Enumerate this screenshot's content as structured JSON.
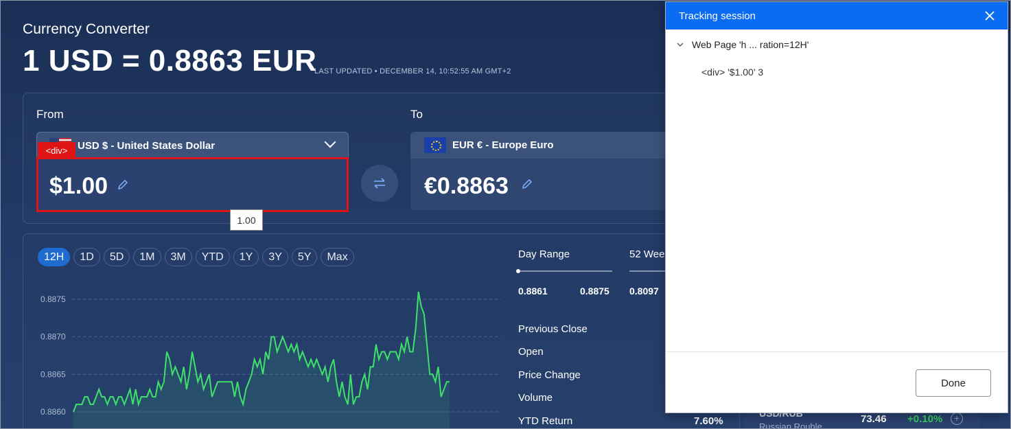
{
  "header": {
    "title": "Currency Converter",
    "rate": "1 USD = 0.8863 EUR",
    "last_updated": "LAST UPDATED • DECEMBER 14, 10:52:55 AM GMT+2"
  },
  "converter": {
    "from_label": "From",
    "to_label": "To",
    "from_currency": "USD $ - United States Dollar",
    "to_currency": "EUR € - Europe Euro",
    "from_amount": "$1.00",
    "to_amount": "€0.8863"
  },
  "overlay": {
    "highlight_tag": "<div>",
    "tooltip": "1.00"
  },
  "range_tabs": [
    "12H",
    "1D",
    "5D",
    "1M",
    "3M",
    "YTD",
    "1Y",
    "3Y",
    "5Y",
    "Max"
  ],
  "active_range": "12H",
  "chart_data": {
    "type": "line",
    "title": "",
    "xlabel": "",
    "ylabel": "",
    "ylim": [
      0.8858,
      0.8877
    ],
    "yticks": [
      "0.8875",
      "0.8870",
      "0.8865",
      "0.8860"
    ],
    "grid": true,
    "series_color": "#3ee26a",
    "values": [
      0.886,
      0.8861,
      0.8861,
      0.8861,
      0.8862,
      0.8862,
      0.8861,
      0.8861,
      0.8862,
      0.8863,
      0.8862,
      0.8862,
      0.8861,
      0.8862,
      0.8862,
      0.8861,
      0.8862,
      0.8862,
      0.8861,
      0.8862,
      0.8863,
      0.8861,
      0.8863,
      0.8861,
      0.8862,
      0.8862,
      0.8862,
      0.8863,
      0.8862,
      0.8862,
      0.8864,
      0.8863,
      0.8864,
      0.8868,
      0.8867,
      0.8865,
      0.8866,
      0.8865,
      0.8864,
      0.8866,
      0.8863,
      0.8865,
      0.8868,
      0.8866,
      0.8864,
      0.8865,
      0.8863,
      0.8864,
      0.8865,
      0.8862,
      0.8863,
      0.8864,
      0.8864,
      0.8864,
      0.8864,
      0.8864,
      0.8864,
      0.8862,
      0.8864,
      0.8862,
      0.8861,
      0.8863,
      0.8864,
      0.8865,
      0.8867,
      0.8866,
      0.8867,
      0.8865,
      0.8868,
      0.8867,
      0.887,
      0.887,
      0.8868,
      0.8869,
      0.887,
      0.8869,
      0.8868,
      0.8869,
      0.8868,
      0.8869,
      0.8867,
      0.8868,
      0.8867,
      0.8866,
      0.8867,
      0.8866,
      0.8867,
      0.8866,
      0.8865,
      0.8866,
      0.8864,
      0.8866,
      0.8867,
      0.8864,
      0.8862,
      0.8864,
      0.8862,
      0.8861,
      0.8865,
      0.8861,
      0.8862,
      0.8862,
      0.8864,
      0.8865,
      0.8863,
      0.8866,
      0.8866,
      0.8869,
      0.8867,
      0.8868,
      0.8868,
      0.8867,
      0.8868,
      0.8868,
      0.8868,
      0.8867,
      0.8869,
      0.8868,
      0.887,
      0.8868,
      0.8868,
      0.8871,
      0.8876,
      0.8874,
      0.8873,
      0.8869,
      0.8865,
      0.8865,
      0.8864,
      0.8866,
      0.8862,
      0.8863,
      0.8864,
      0.8864
    ]
  },
  "stats": {
    "day_range_label": "Day Range",
    "day_low": "0.8861",
    "day_high": "0.8875",
    "week52_label": "52 Wee",
    "week52_low": "0.8097",
    "rows": [
      "Previous Close",
      "Open",
      "Price Change",
      "Volume",
      "YTD Return"
    ],
    "ytd_value": "7.60%"
  },
  "ticker": {
    "pair": "USD/RUB",
    "name": "Russian Rouble",
    "price": "73.46",
    "change": "+0.10%"
  },
  "panel": {
    "title": "Tracking session",
    "tree_root": "Web Page 'h ... ration=12H'",
    "tree_child": "<div> '$1.00' 3",
    "done_label": "Done"
  }
}
